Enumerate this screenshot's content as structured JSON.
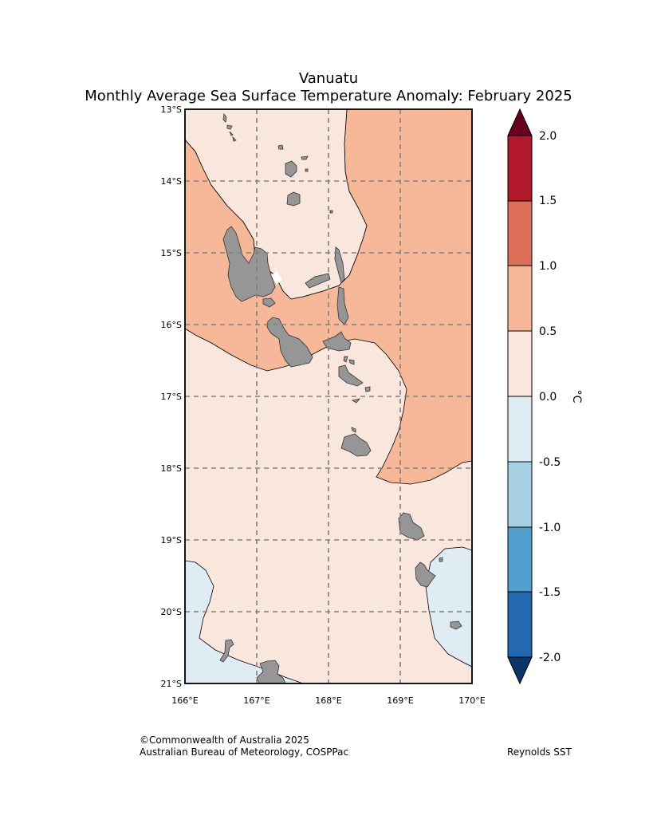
{
  "title": {
    "region": "Vanuatu",
    "subtitle": "Monthly Average Sea Surface Temperature Anomaly: February 2025"
  },
  "map": {
    "lon_range": [
      166,
      170
    ],
    "lat_range": [
      -21,
      -13
    ],
    "lon_ticks": [
      "166°E",
      "167°E",
      "168°E",
      "169°E",
      "170°E"
    ],
    "lat_ticks": [
      "13°S",
      "14°S",
      "15°S",
      "16°S",
      "17°S",
      "18°S",
      "19°S",
      "20°S",
      "21°S"
    ],
    "grid": "dashed",
    "land_color": "#969696"
  },
  "colorbar": {
    "unit": "°C",
    "ticks": [
      "2.0",
      "1.5",
      "1.0",
      "0.5",
      "0.0",
      "-0.5",
      "-1.0",
      "-1.5",
      "-2.0"
    ],
    "colors": [
      "#67001f",
      "#b2182b",
      "#d6604d",
      "#f4a582",
      "#fddbc7",
      "#deebf7",
      "#9ecae1",
      "#4393c3",
      "#2166ac",
      "#053061"
    ],
    "extend": "both"
  },
  "footer": {
    "copyright": "©Commonwealth of Australia 2025",
    "agency": "Australian Bureau of Meteorology, COSPPac",
    "dataset": "Reynolds SST"
  }
}
